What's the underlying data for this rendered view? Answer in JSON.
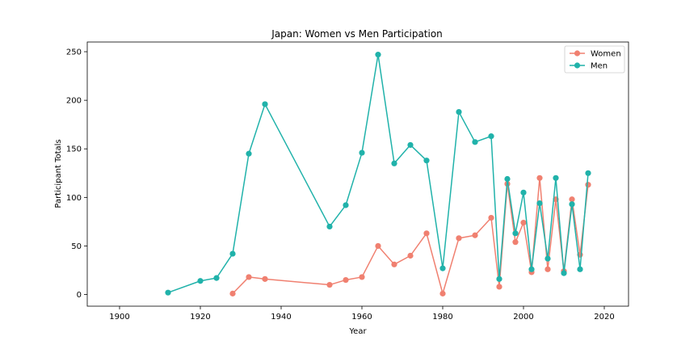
{
  "chart_data": {
    "type": "line",
    "title": "Japan: Women vs Men Participation",
    "xlabel": "Year",
    "ylabel": "Participant Totals",
    "xlim": [
      1892,
      2026
    ],
    "ylim": [
      -12,
      260
    ],
    "xticks": [
      1900,
      1920,
      1940,
      1960,
      1980,
      2000,
      2020
    ],
    "yticks": [
      0,
      50,
      100,
      150,
      200,
      250
    ],
    "grid": false,
    "legend_position": "top-right",
    "series": [
      {
        "name": "Women",
        "color": "#f08070",
        "x": [
          1928,
          1932,
          1936,
          1952,
          1956,
          1960,
          1964,
          1968,
          1972,
          1976,
          1980,
          1984,
          1988,
          1992,
          1994,
          1996,
          1998,
          2000,
          2002,
          2004,
          2006,
          2008,
          2010,
          2012,
          2014,
          2016
        ],
        "y": [
          1,
          18,
          16,
          10,
          15,
          18,
          50,
          31,
          40,
          63,
          1,
          58,
          61,
          79,
          8,
          114,
          54,
          74,
          23,
          120,
          26,
          98,
          24,
          98,
          41,
          113
        ]
      },
      {
        "name": "Men",
        "color": "#20b2aa",
        "x": [
          1912,
          1920,
          1924,
          1928,
          1932,
          1936,
          1952,
          1956,
          1960,
          1964,
          1968,
          1972,
          1976,
          1980,
          1984,
          1988,
          1992,
          1994,
          1996,
          1998,
          2000,
          2002,
          2004,
          2006,
          2008,
          2010,
          2012,
          2014,
          2016
        ],
        "y": [
          2,
          14,
          17,
          42,
          145,
          196,
          70,
          92,
          146,
          247,
          135,
          154,
          138,
          27,
          188,
          157,
          163,
          16,
          119,
          63,
          105,
          26,
          94,
          37,
          120,
          22,
          93,
          26,
          125
        ]
      }
    ]
  }
}
